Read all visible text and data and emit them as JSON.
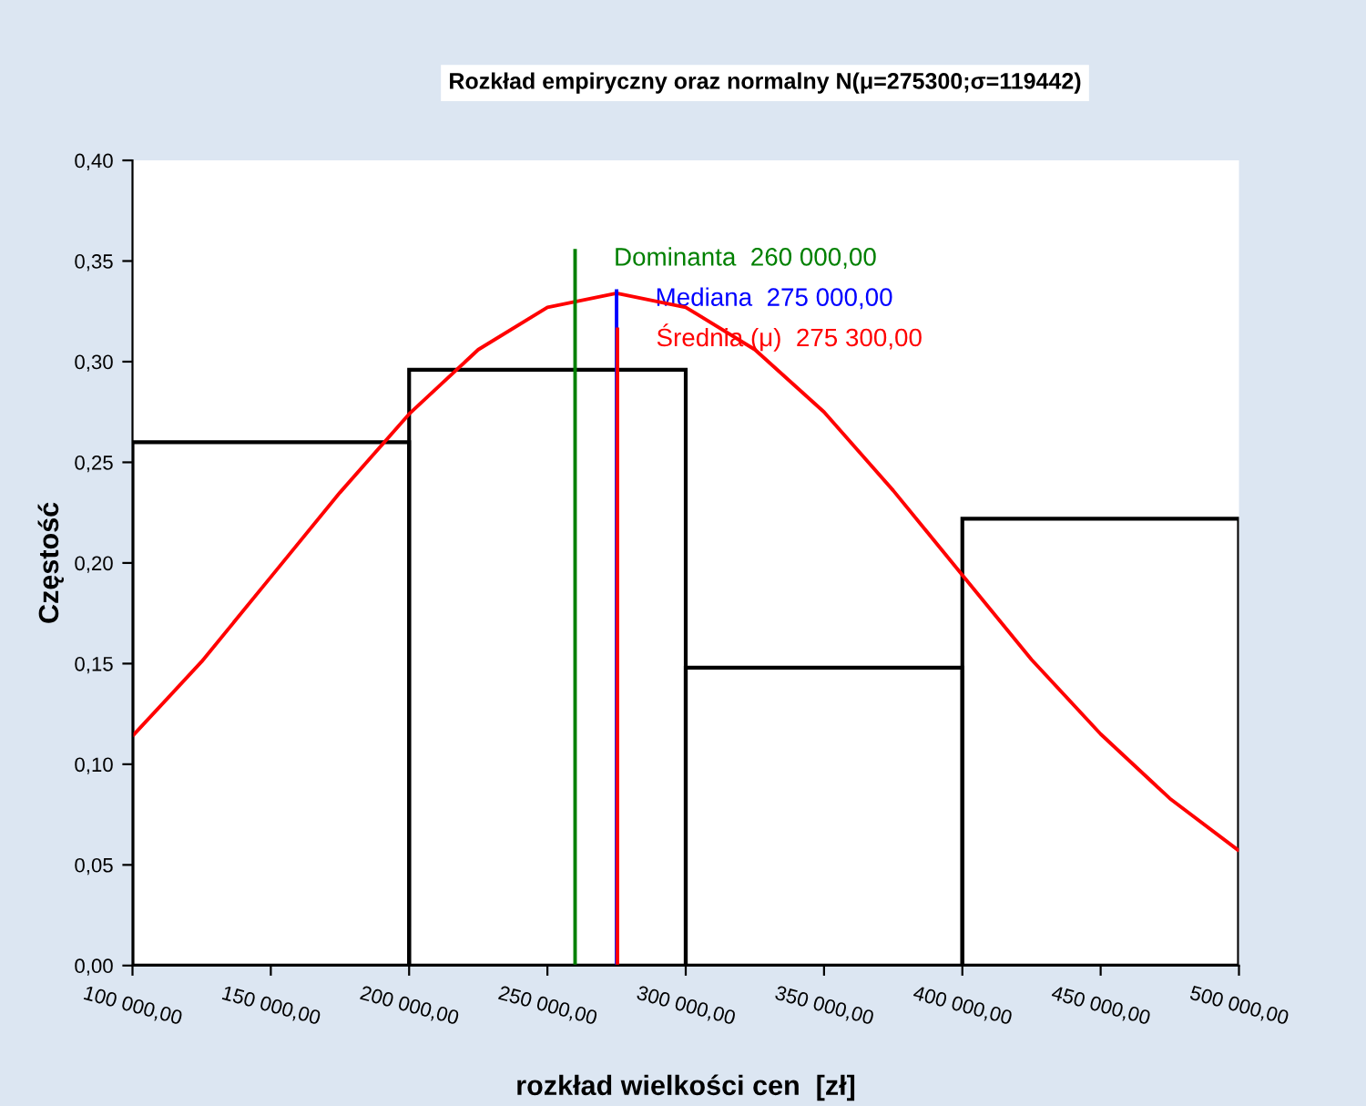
{
  "chart_data": {
    "type": "histogram",
    "title": "Rozkład empiryczny oraz normalny N(μ=275300;σ=119442)",
    "xlabel": "rozkład wielkości cen  [zł]",
    "ylabel": "Częstość",
    "series": [
      {
        "bins": [
          100000,
          200000,
          300000,
          400000,
          500000
        ],
        "values": [
          0.26,
          0.296,
          0.148,
          0.222
        ],
        "color": "#000000"
      },
      {
        "type": "line",
        "color": "#ff0000",
        "x": [
          100000,
          125000,
          150000,
          175000,
          200000,
          225000,
          250000,
          275000,
          300000,
          325000,
          350000,
          375000,
          400000,
          425000,
          450000,
          475000,
          500000
        ],
        "values": [
          0.114,
          0.151,
          0.193,
          0.235,
          0.274,
          0.306,
          0.327,
          0.334,
          0.327,
          0.306,
          0.275,
          0.236,
          0.194,
          0.152,
          0.115,
          0.083,
          0.057
        ]
      },
      {
        "type": "line",
        "color": "#008000",
        "x": [
          260000,
          260000
        ],
        "values": [
          0,
          0.356
        ]
      },
      {
        "type": "line",
        "color": "#0000ff",
        "x": [
          275000,
          275000
        ],
        "values": [
          0,
          0.336
        ]
      },
      {
        "type": "line",
        "color": "#ff0000",
        "x": [
          275300,
          275300
        ],
        "values": [
          0,
          0.317
        ]
      }
    ],
    "annotations": [
      {
        "text": "Dominanta  260 000,00",
        "x": 260000,
        "y": 0.356
      },
      {
        "text": "Mediana  275 000,00",
        "x": 275000,
        "y": 0.336
      },
      {
        "text": "Średnia (μ)  275 300,00",
        "x": 275300,
        "y": 0.317
      }
    ],
    "xlim": [
      100000,
      500000
    ],
    "xticks": [
      {
        "value": 100000,
        "label": "100 000,00"
      },
      {
        "value": 150000,
        "label": "150 000,00"
      },
      {
        "value": 200000,
        "label": "200 000,00"
      },
      {
        "value": 250000,
        "label": "250 000,00"
      },
      {
        "value": 300000,
        "label": "300 000,00"
      },
      {
        "value": 350000,
        "label": "350 000,00"
      },
      {
        "value": 400000,
        "label": "400 000,00"
      },
      {
        "value": 450000,
        "label": "450 000,00"
      },
      {
        "value": 500000,
        "label": "500 000,00"
      }
    ],
    "ylim": [
      0,
      0.4
    ],
    "yticks": [
      {
        "value": 0,
        "label": "0,00"
      },
      {
        "value": 0.05,
        "label": "0,05"
      },
      {
        "value": 0.1,
        "label": "0,10"
      },
      {
        "value": 0.15,
        "label": "0,15"
      },
      {
        "value": 0.2,
        "label": "0,20"
      },
      {
        "value": 0.25,
        "label": "0,25"
      },
      {
        "value": 0.3,
        "label": "0,30"
      },
      {
        "value": 0.35,
        "label": "0,35"
      },
      {
        "value": 0.4,
        "label": "0,40"
      }
    ],
    "grid": false
  }
}
